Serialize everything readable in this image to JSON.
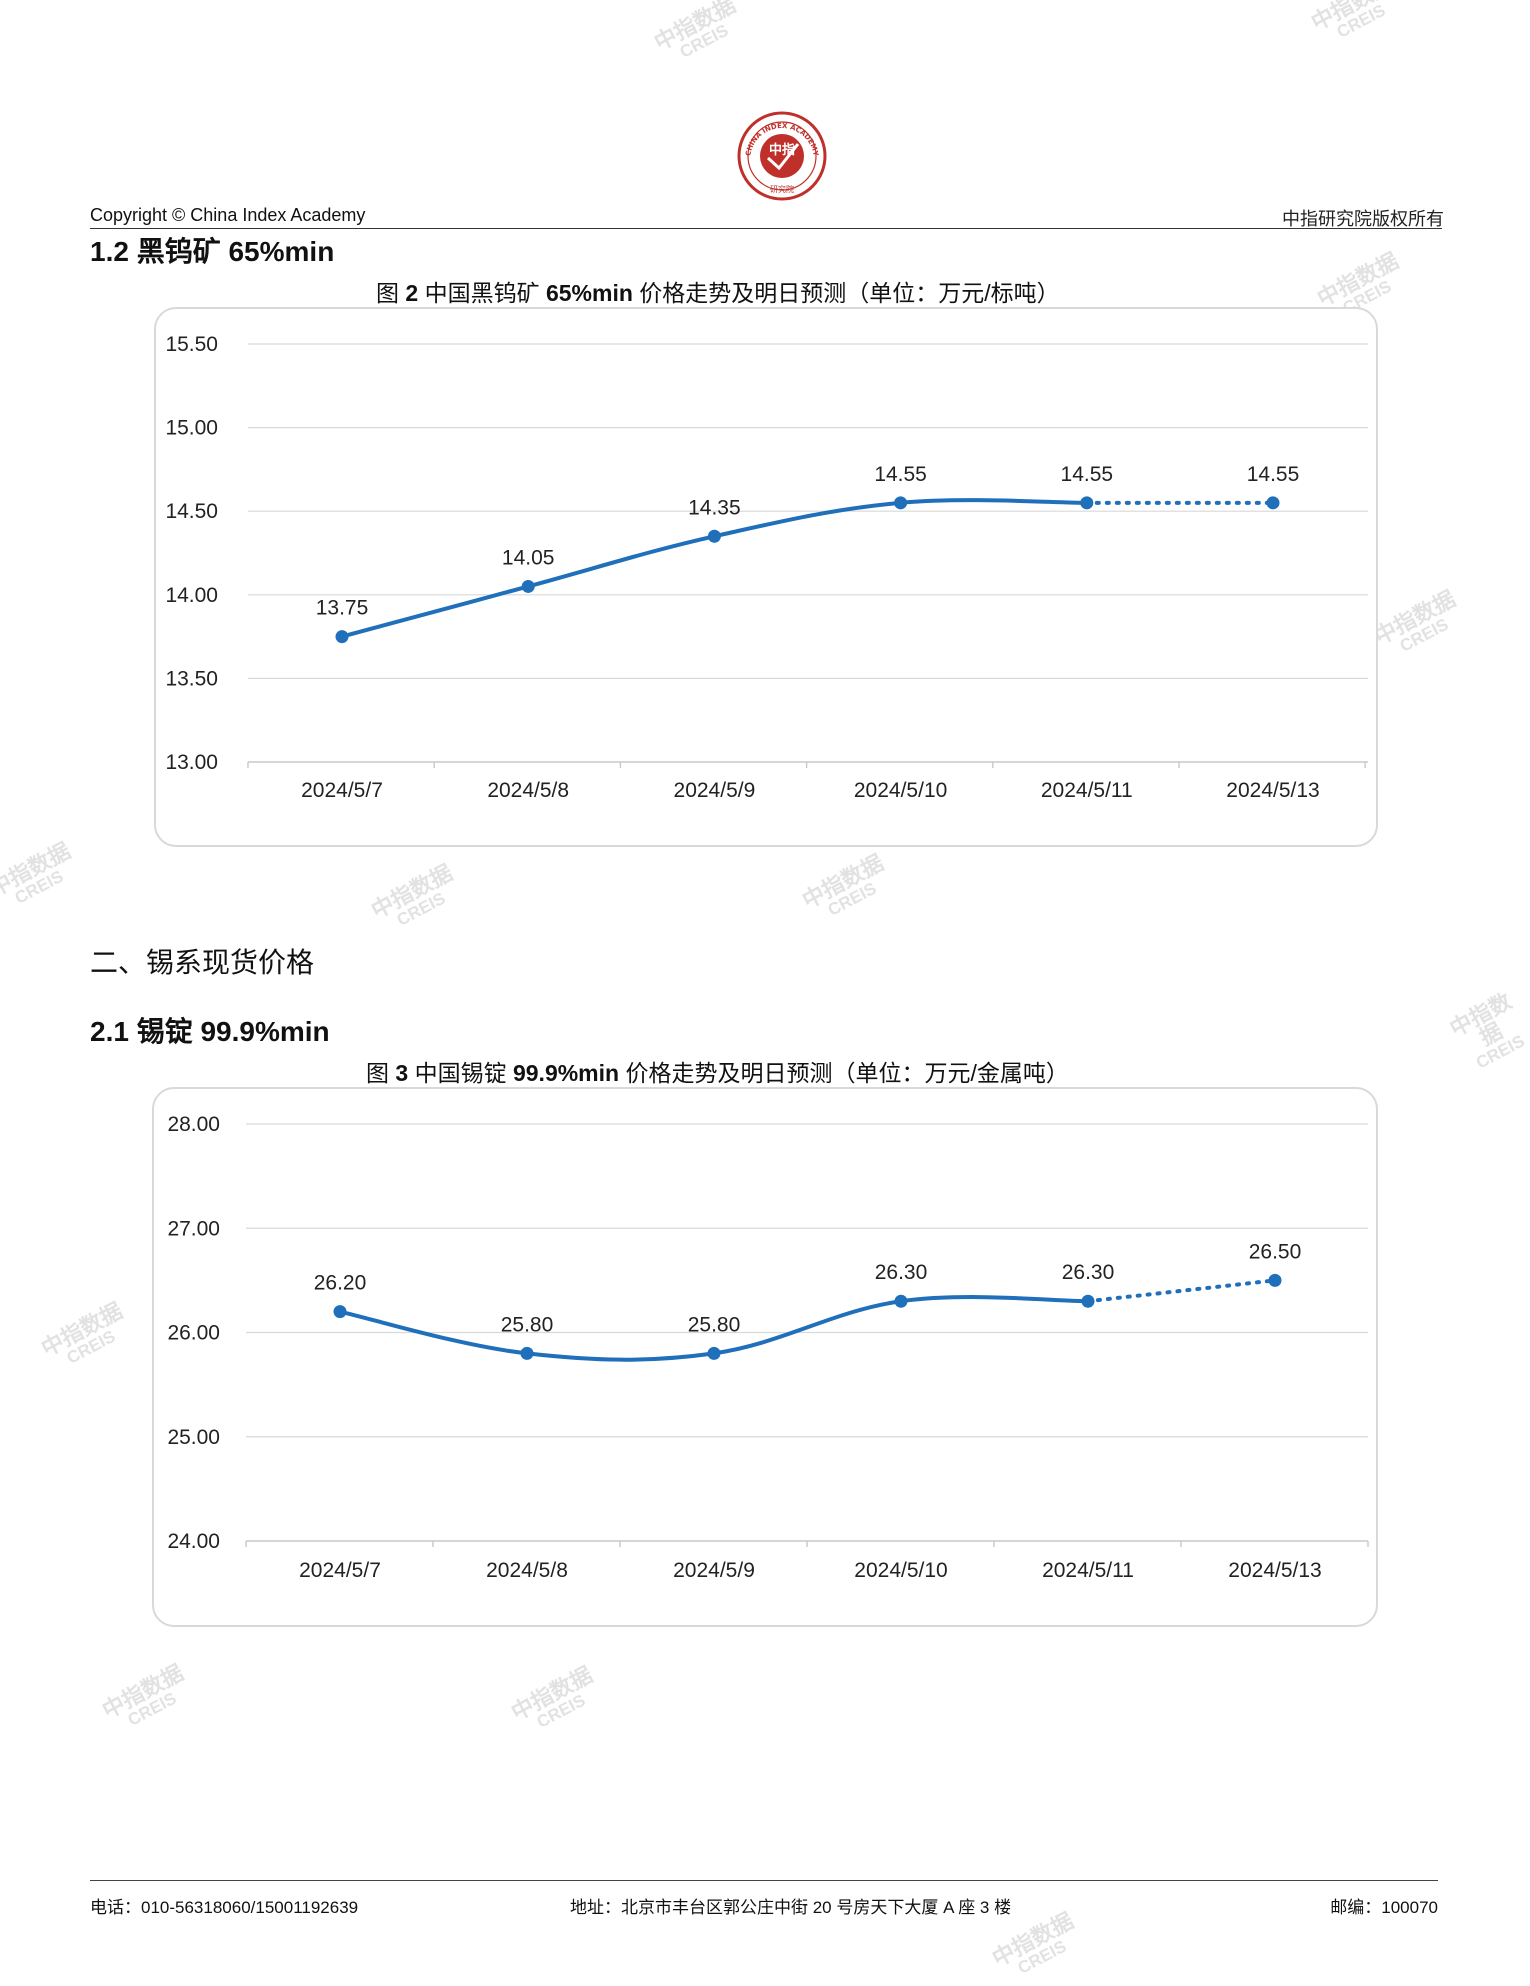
{
  "header": {
    "copyright": "Copyright © China Index Academy",
    "rights": "中指研究院版权所有",
    "logo": {
      "ring_text": "CHINA INDEX ACADEMY",
      "center_text": "中指",
      "bottom_text": "研究院",
      "color": "#c0302a"
    }
  },
  "section_1_2": {
    "title": "1.2 黑钨矿 65%min"
  },
  "figure_2": {
    "caption_prefix": "图 ",
    "caption_num": "2",
    "caption_mid": " 中国黑钨矿 ",
    "caption_grade": "65%min",
    "caption_rest": " 价格走势及明日预测（单位：万元/标吨）"
  },
  "section_2": {
    "title": "二、锡系现货价格"
  },
  "section_2_1": {
    "title": "2.1 锡锭 99.9%min"
  },
  "figure_3": {
    "caption_prefix": "图 ",
    "caption_num": "3",
    "caption_mid": " 中国锡锭 ",
    "caption_grade": "99.9%min",
    "caption_rest": " 价格走势及明日预测（单位：万元/金属吨）"
  },
  "chart_data": [
    {
      "type": "line",
      "categories": [
        "2024/5/7",
        "2024/5/8",
        "2024/5/9",
        "2024/5/10",
        "2024/5/11",
        "2024/5/13"
      ],
      "values": [
        13.75,
        14.05,
        14.35,
        14.55,
        14.55,
        14.55
      ],
      "data_labels": [
        "13.75",
        "14.05",
        "14.35",
        "14.55",
        "14.55",
        "14.55"
      ],
      "yticks": [
        "13.00",
        "13.50",
        "14.00",
        "14.50",
        "15.00",
        "15.50"
      ],
      "ylim": [
        13.0,
        15.5
      ],
      "forecast_from_index": 4,
      "grid": true,
      "line_color": "#1f6fba"
    },
    {
      "type": "line",
      "categories": [
        "2024/5/7",
        "2024/5/8",
        "2024/5/9",
        "2024/5/10",
        "2024/5/11",
        "2024/5/13"
      ],
      "values": [
        26.2,
        25.8,
        25.8,
        26.3,
        26.3,
        26.5
      ],
      "data_labels": [
        "26.20",
        "25.80",
        "25.80",
        "26.30",
        "26.30",
        "26.50"
      ],
      "yticks": [
        "24.00",
        "25.00",
        "26.00",
        "27.00",
        "28.00"
      ],
      "ylim": [
        24.0,
        28.0
      ],
      "forecast_from_index": 4,
      "grid": true,
      "line_color": "#1f6fba"
    }
  ],
  "watermark": {
    "cn": "中指数据",
    "en": "CREIS"
  },
  "footer": {
    "phone": "电话：010-56318060/15001192639",
    "address": "地址：北京市丰台区郭公庄中街 20 号房天下大厦 A 座 3 楼",
    "postcode": "邮编：100070"
  }
}
